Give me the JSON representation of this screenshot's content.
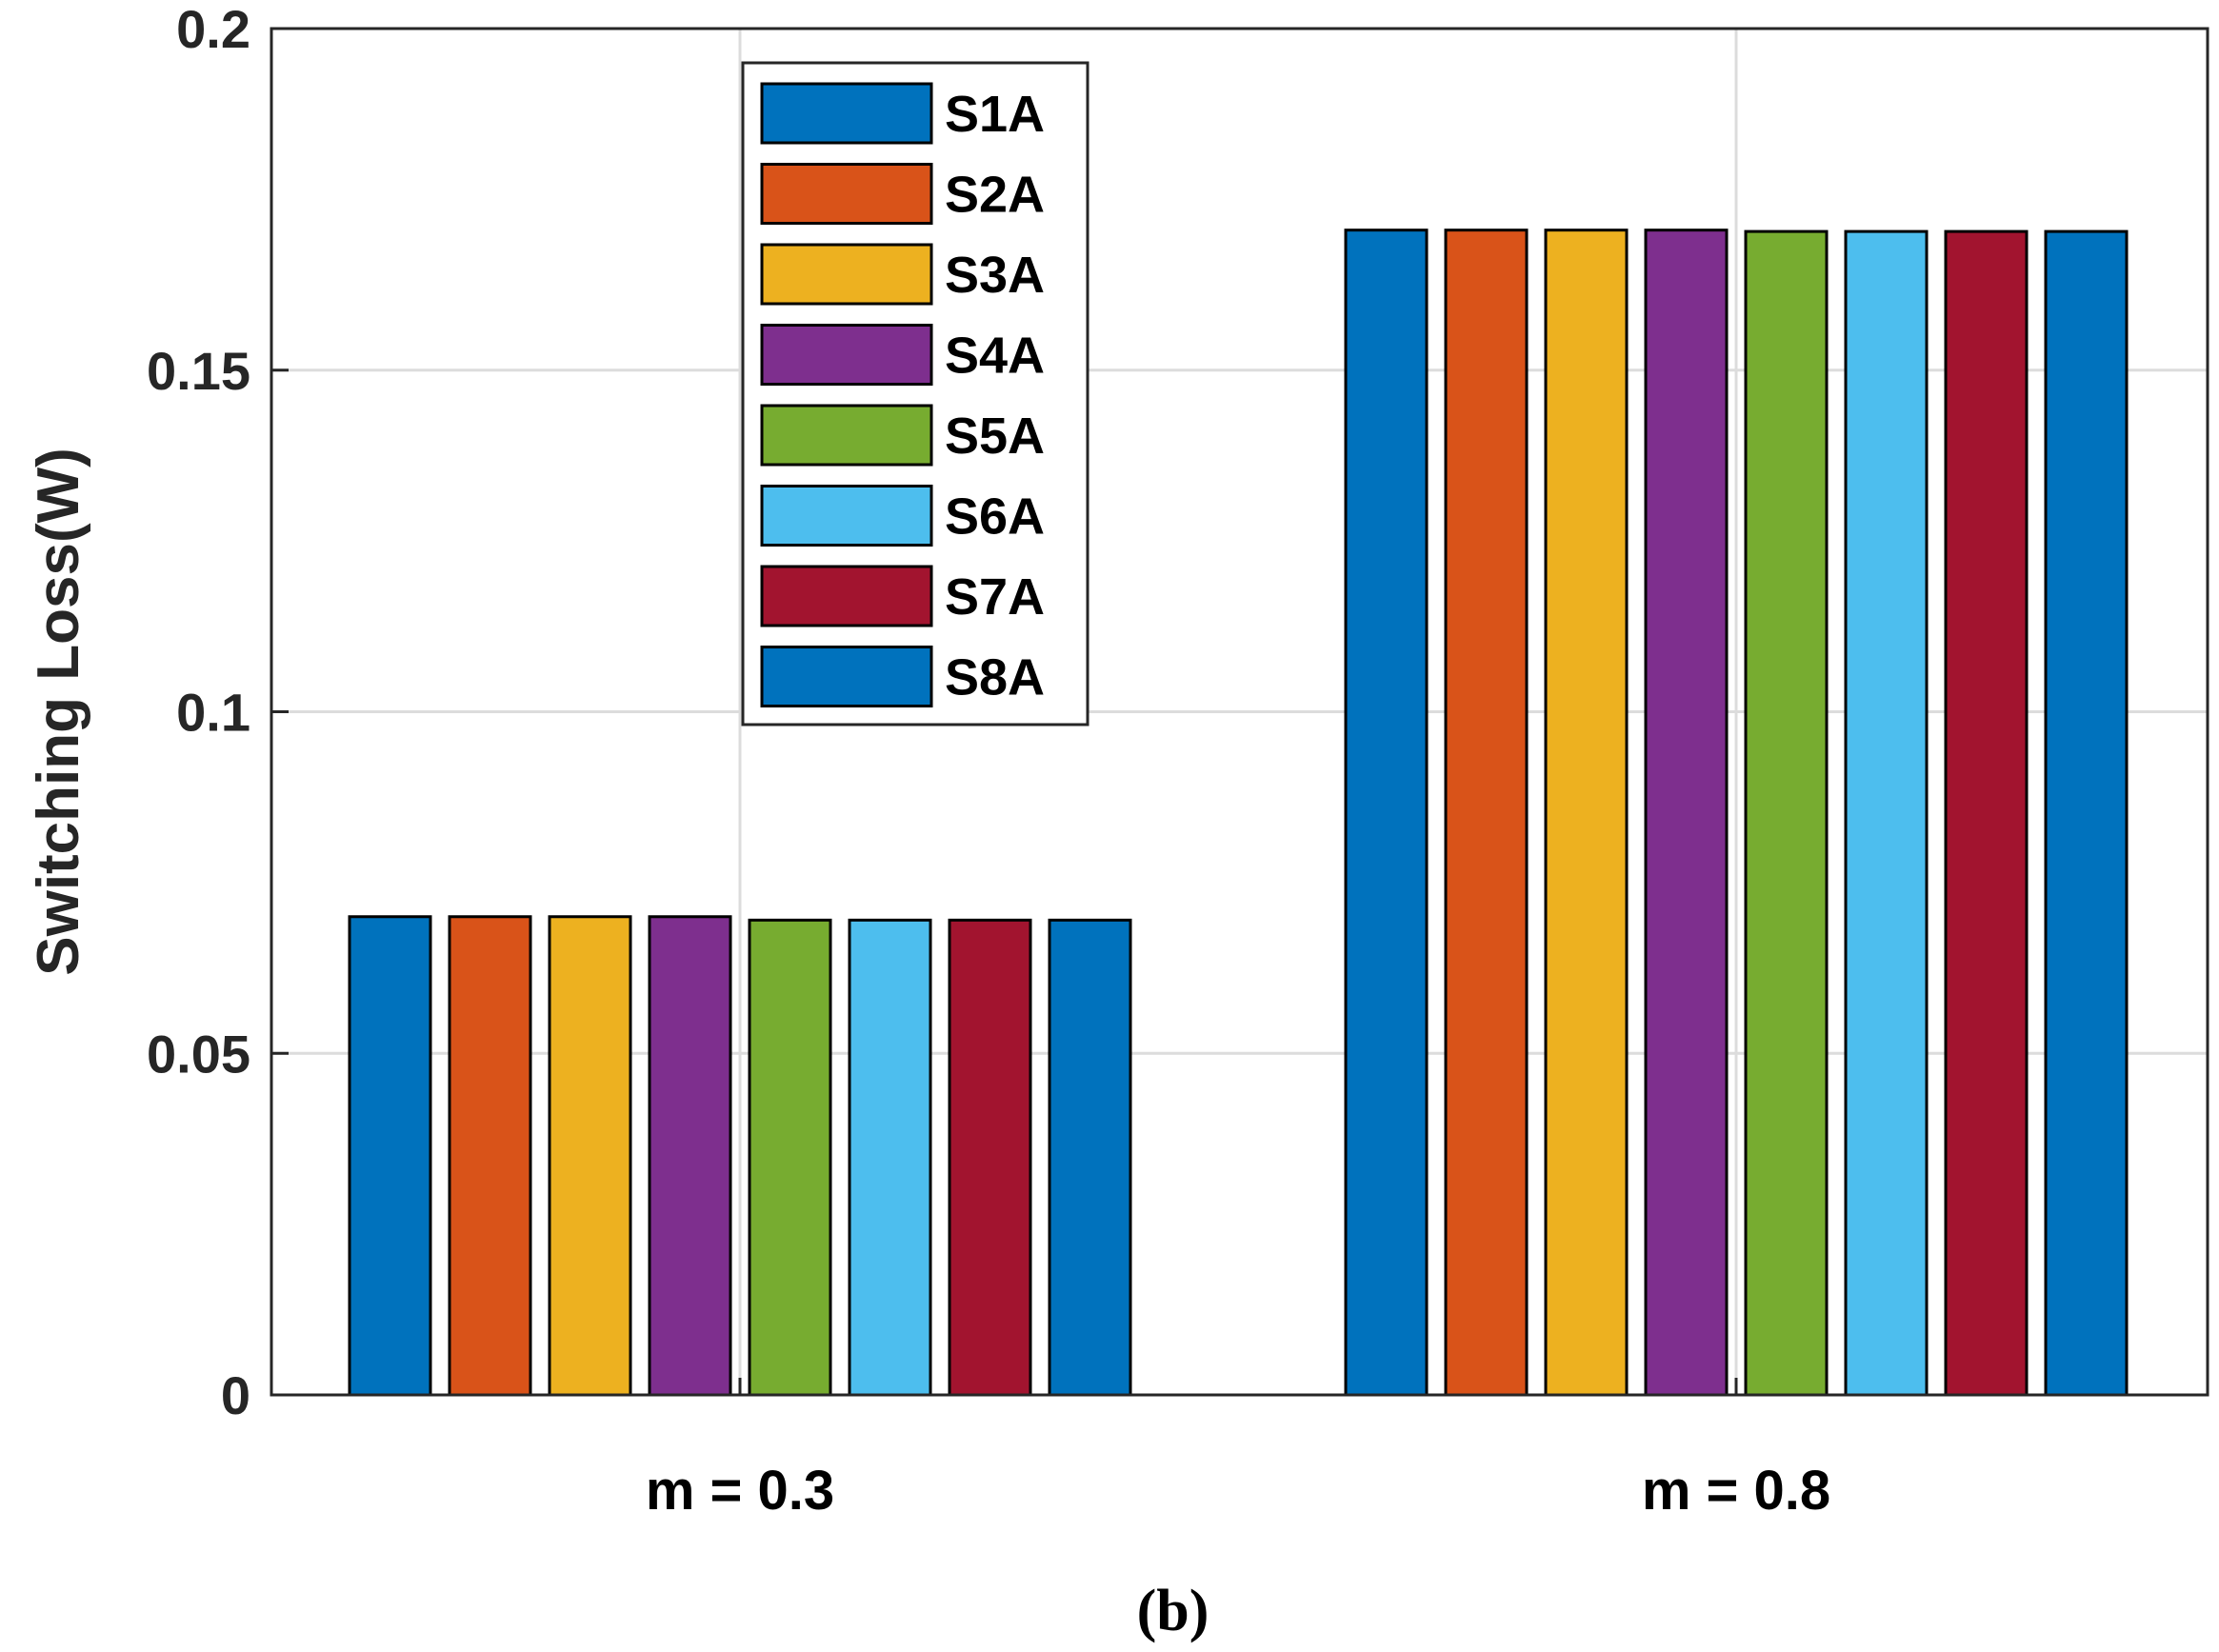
{
  "chart_data": {
    "type": "bar",
    "title": "",
    "xlabel": "",
    "ylabel": "Switching Loss(W)",
    "ylim": [
      0,
      0.2
    ],
    "yticks": [
      {
        "value": 0,
        "label": "0"
      },
      {
        "value": 0.05,
        "label": "0.05"
      },
      {
        "value": 0.1,
        "label": "0.1"
      },
      {
        "value": 0.15,
        "label": "0.15"
      },
      {
        "value": 0.2,
        "label": "0.2"
      }
    ],
    "grid": true,
    "legend_position": "top-center",
    "categories": [
      "m = 0.3",
      "m = 0.8"
    ],
    "series": [
      {
        "name": "S1A",
        "color": "#0072BD",
        "values": [
          0.07,
          0.1705
        ]
      },
      {
        "name": "S2A",
        "color": "#D95319",
        "values": [
          0.07,
          0.1705
        ]
      },
      {
        "name": "S3A",
        "color": "#EDB120",
        "values": [
          0.07,
          0.1705
        ]
      },
      {
        "name": "S4A",
        "color": "#7E2F8E",
        "values": [
          0.07,
          0.1705
        ]
      },
      {
        "name": "S5A",
        "color": "#77AC30",
        "values": [
          0.0695,
          0.1703
        ]
      },
      {
        "name": "S6A",
        "color": "#4DBEEE",
        "values": [
          0.0695,
          0.1703
        ]
      },
      {
        "name": "S7A",
        "color": "#A2142F",
        "values": [
          0.0695,
          0.1703
        ]
      },
      {
        "name": "S8A",
        "color": "#0072BD",
        "values": [
          0.0695,
          0.1703
        ]
      }
    ],
    "caption": "(b)"
  }
}
